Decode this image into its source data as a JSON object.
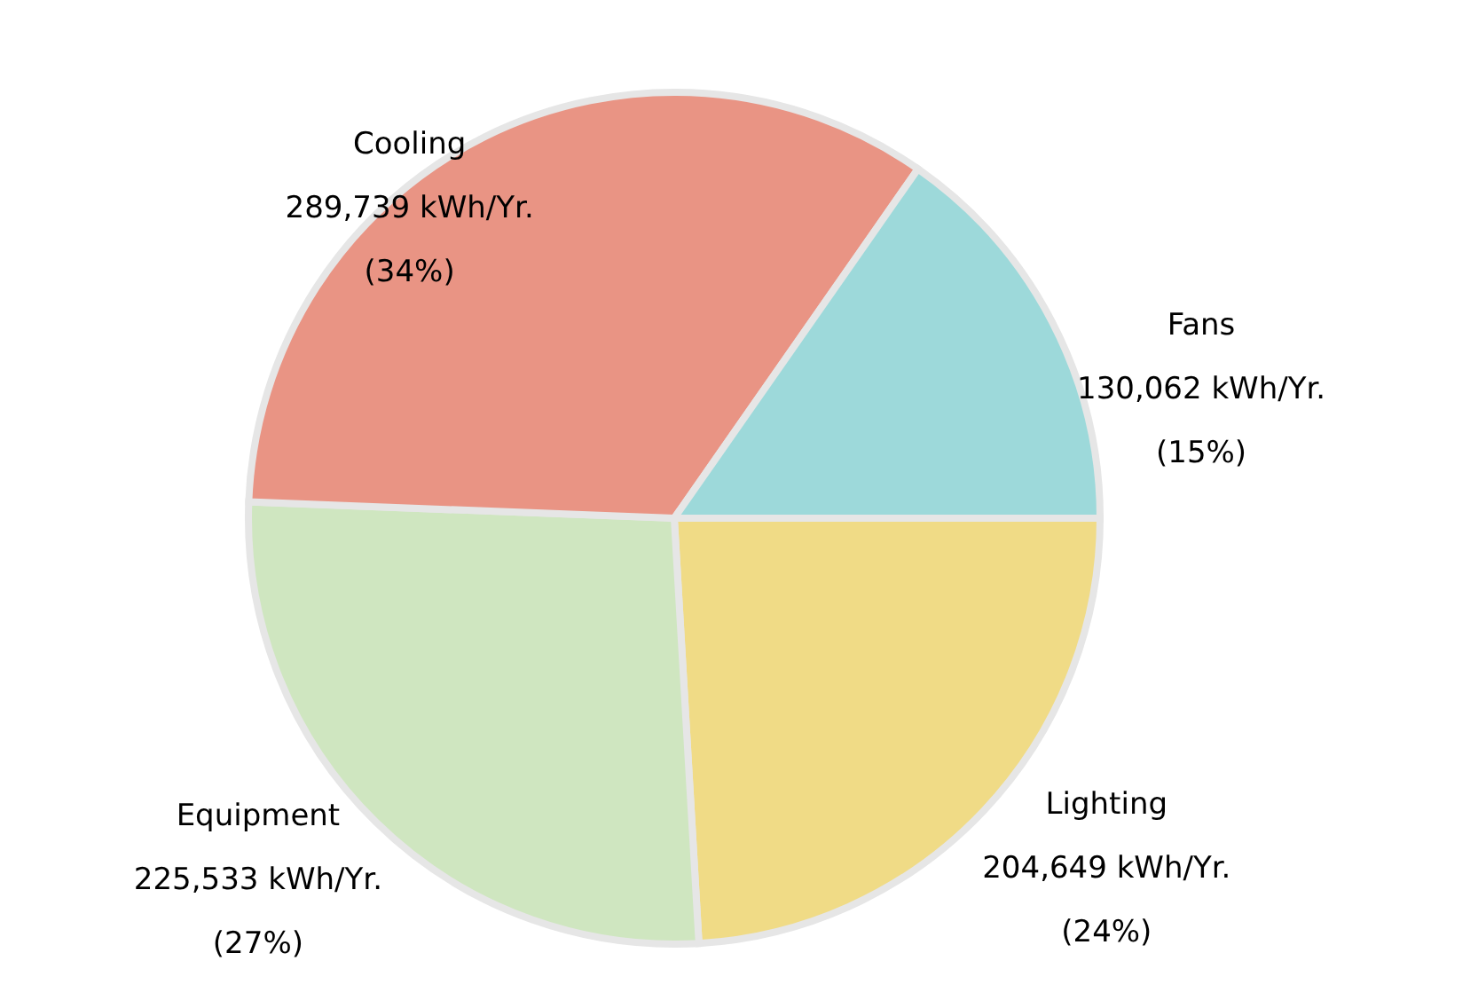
{
  "chart_data": {
    "type": "pie",
    "categories": [
      "Lighting",
      "Equipment",
      "Cooling",
      "Fans"
    ],
    "values": [
      204649,
      225533,
      289739,
      130062
    ],
    "colors": [
      "#f0db86",
      "#cfe6c0",
      "#e99484",
      "#9dd9da"
    ],
    "value_labels": [
      "204,649 kWh/Yr.\n(24%)",
      "225,533 kWh/Yr.\n(27%)",
      "289,739 kWh/Yr.\n(34%)",
      "130,062 kWh/Yr.\n(15%)"
    ]
  }
}
